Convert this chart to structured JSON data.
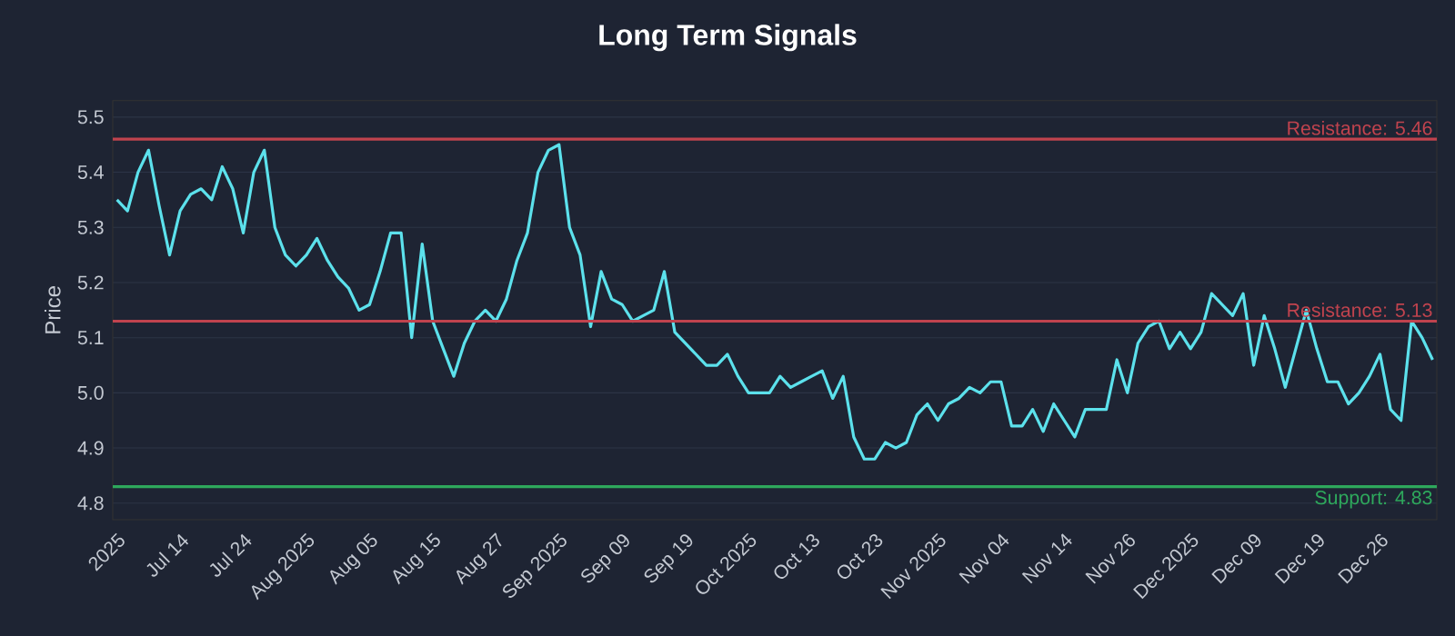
{
  "chart_data": {
    "type": "line",
    "title": "Long Term Signals",
    "ylabel": "Price",
    "categories": [
      "2025",
      null,
      null,
      null,
      null,
      null,
      "Jul 14",
      null,
      null,
      null,
      null,
      null,
      "Jul 24",
      null,
      null,
      null,
      null,
      null,
      "Aug 2025",
      null,
      null,
      null,
      null,
      null,
      "Aug 05",
      null,
      null,
      null,
      null,
      null,
      "Aug 15",
      null,
      null,
      null,
      null,
      null,
      "Aug 27",
      null,
      null,
      null,
      null,
      null,
      "Sep 2025",
      null,
      null,
      null,
      null,
      null,
      "Sep 09",
      null,
      null,
      null,
      null,
      null,
      "Sep 19",
      null,
      null,
      null,
      null,
      null,
      "Oct 2025",
      null,
      null,
      null,
      null,
      null,
      "Oct 13",
      null,
      null,
      null,
      null,
      null,
      "Oct 23",
      null,
      null,
      null,
      null,
      null,
      "Nov 2025",
      null,
      null,
      null,
      null,
      null,
      "Nov 04",
      null,
      null,
      null,
      null,
      null,
      "Nov 14",
      null,
      null,
      null,
      null,
      null,
      "Nov 26",
      null,
      null,
      null,
      null,
      null,
      "Dec 2025",
      null,
      null,
      null,
      null,
      null,
      "Dec 09",
      null,
      null,
      null,
      null,
      null,
      "Dec 19",
      null,
      null,
      null,
      null,
      null,
      "Dec 26",
      null,
      null,
      null,
      null,
      null
    ],
    "series": [
      {
        "color": "#5ce1ec",
        "values": [
          5.35,
          5.33,
          5.4,
          5.44,
          5.34,
          5.25,
          5.33,
          5.36,
          5.37,
          5.35,
          5.41,
          5.37,
          5.29,
          5.4,
          5.44,
          5.3,
          5.25,
          5.23,
          5.25,
          5.28,
          5.24,
          5.21,
          5.19,
          5.15,
          5.16,
          5.22,
          5.29,
          5.29,
          5.1,
          5.27,
          5.13,
          5.08,
          5.03,
          5.09,
          5.13,
          5.15,
          5.13,
          5.17,
          5.24,
          5.29,
          5.4,
          5.44,
          5.45,
          5.3,
          5.25,
          5.12,
          5.22,
          5.17,
          5.16,
          5.13,
          5.14,
          5.15,
          5.22,
          5.11,
          5.09,
          5.07,
          5.05,
          5.05,
          5.07,
          5.03,
          5.0,
          5.0,
          5.0,
          5.03,
          5.01,
          5.02,
          5.03,
          5.04,
          4.99,
          5.03,
          4.92,
          4.88,
          4.88,
          4.91,
          4.9,
          4.91,
          4.96,
          4.98,
          4.95,
          4.98,
          4.99,
          5.01,
          5.0,
          5.02,
          5.02,
          4.94,
          4.94,
          4.97,
          4.93,
          4.98,
          4.95,
          4.92,
          4.97,
          4.97,
          4.97,
          5.06,
          5.0,
          5.09,
          5.12,
          5.13,
          5.08,
          5.11,
          5.08,
          5.11,
          5.18,
          5.16,
          5.14,
          5.18,
          5.05,
          5.14,
          5.08,
          5.01,
          5.08,
          5.15,
          5.08,
          5.02,
          5.02,
          4.98,
          5.0,
          5.03,
          5.07,
          4.97,
          4.95,
          5.13,
          5.1,
          5.06
        ]
      }
    ],
    "ylim": [
      4.77,
      5.53
    ],
    "yticks": [
      4.8,
      4.9,
      {
        "value": 5.0,
        "label": "5.0"
      },
      5.1,
      5.2,
      5.3,
      5.4,
      5.5
    ],
    "grid": "y",
    "ref_lines": [
      {
        "axis": "y",
        "value": 5.46,
        "label": "Resistance: 5.46",
        "color": "#c0434e"
      },
      {
        "axis": "y",
        "value": 5.13,
        "label": "Resistance: 5.13",
        "color": "#c0434e"
      },
      {
        "axis": "y",
        "value": 4.83,
        "label": "Support: 4.83",
        "color": "#2ea85c"
      }
    ]
  }
}
